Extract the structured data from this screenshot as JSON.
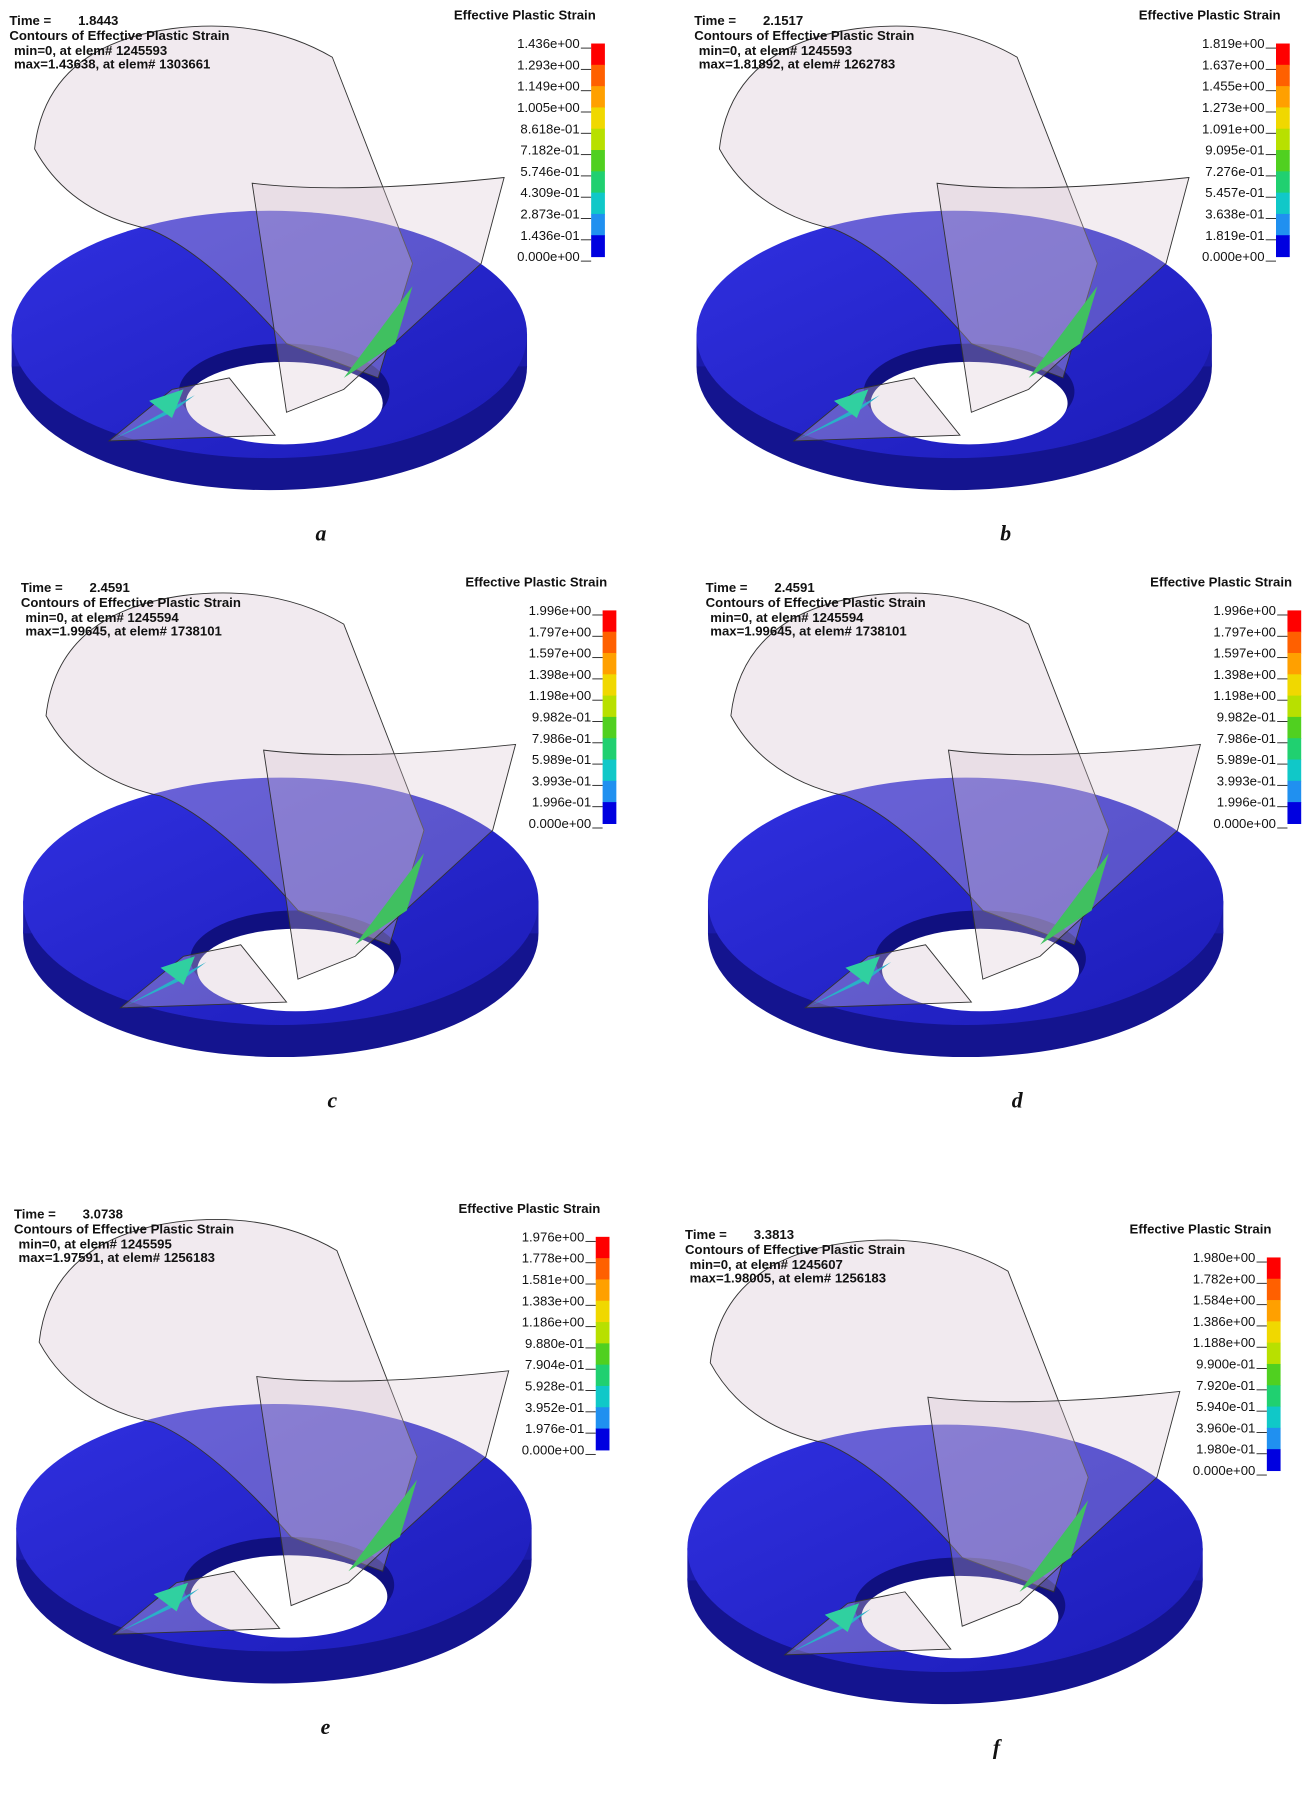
{
  "panels": [
    {
      "time_label": "Time =",
      "time": "1.8443",
      "contour": "Contours of Effective Plastic Strain",
      "min": "min=0, at elem# 1245593",
      "max": "max=1.43638, at elem# 1303661",
      "legend_title": "Effective Plastic Strain",
      "legend_ticks": [
        "1.436e+00",
        "1.293e+00",
        "1.149e+00",
        "1.005e+00",
        "8.618e-01",
        "7.182e-01",
        "5.746e-01",
        "4.309e-01",
        "2.873e-01",
        "1.436e-01",
        "0.000e+00"
      ],
      "caption": "a"
    },
    {
      "time_label": "Time =",
      "time": "2.1517",
      "contour": "Contours of Effective Plastic Strain",
      "min": "min=0, at elem# 1245593",
      "max": "max=1.81892, at elem# 1262783",
      "legend_title": "Effective Plastic Strain",
      "legend_ticks": [
        "1.819e+00",
        "1.637e+00",
        "1.455e+00",
        "1.273e+00",
        "1.091e+00",
        "9.095e-01",
        "7.276e-01",
        "5.457e-01",
        "3.638e-01",
        "1.819e-01",
        "0.000e+00"
      ],
      "caption": "b"
    },
    {
      "time_label": "Time =",
      "time": "2.4591",
      "contour": "Contours of Effective Plastic Strain",
      "min": "min=0, at elem# 1245594",
      "max": "max=1.99645, at elem# 1738101",
      "legend_title": "Effective Plastic Strain",
      "legend_ticks": [
        "1.996e+00",
        "1.797e+00",
        "1.597e+00",
        "1.398e+00",
        "1.198e+00",
        "9.982e-01",
        "7.986e-01",
        "5.989e-01",
        "3.993e-01",
        "1.996e-01",
        "0.000e+00"
      ],
      "caption": "c"
    },
    {
      "time_label": "Time =",
      "time": "2.4591",
      "contour": "Contours of Effective Plastic Strain",
      "min": "min=0, at elem# 1245594",
      "max": "max=1.99645, at elem# 1738101",
      "legend_title": "Effective Plastic Strain",
      "legend_ticks": [
        "1.996e+00",
        "1.797e+00",
        "1.597e+00",
        "1.398e+00",
        "1.198e+00",
        "9.982e-01",
        "7.986e-01",
        "5.989e-01",
        "3.993e-01",
        "1.996e-01",
        "0.000e+00"
      ],
      "caption": "d"
    },
    {
      "time_label": "Time =",
      "time": "3.0738",
      "contour": "Contours of Effective Plastic Strain",
      "min": "min=0, at elem# 1245595",
      "max": "max=1.97591, at elem# 1256183",
      "legend_title": "Effective Plastic Strain",
      "legend_ticks": [
        "1.976e+00",
        "1.778e+00",
        "1.581e+00",
        "1.383e+00",
        "1.186e+00",
        "9.880e-01",
        "7.904e-01",
        "5.928e-01",
        "3.952e-01",
        "1.976e-01",
        "0.000e+00"
      ],
      "caption": "e"
    },
    {
      "time_label": "Time =",
      "time": "3.3813",
      "contour": "Contours of Effective Plastic Strain",
      "min": "min=0, at elem# 1245607",
      "max": "max=1.98005, at elem# 1256183",
      "legend_title": "Effective Plastic Strain",
      "legend_ticks": [
        "1.980e+00",
        "1.782e+00",
        "1.584e+00",
        "1.386e+00",
        "1.188e+00",
        "9.900e-01",
        "7.920e-01",
        "5.940e-01",
        "3.960e-01",
        "1.980e-01",
        "0.000e+00"
      ],
      "caption": "f"
    }
  ]
}
